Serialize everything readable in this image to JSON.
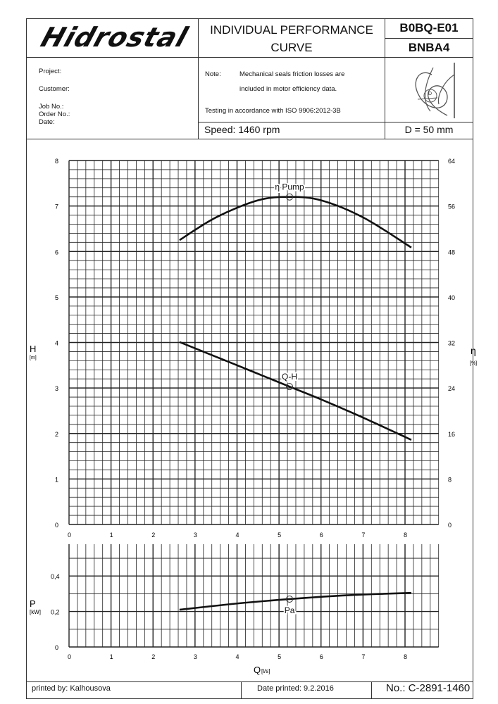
{
  "header": {
    "logo": "Hidrostal",
    "title_line1": "INDIVIDUAL PERFORMANCE",
    "title_line2": "CURVE",
    "code1": "B0BQ-E01",
    "code2": "BNBA4"
  },
  "info": {
    "project": "Project:",
    "customer": "Customer:",
    "job_no": "Job No.:",
    "order_no": "Order No.:",
    "date": "Date:",
    "note_label": "Note:",
    "note_line1": "Mechanical seals friction losses are",
    "note_line2": "included in motor efficiency data.",
    "testing": "Testing in accordance with ISO 9906:2012-3B",
    "speed": "Speed: 1460 rpm",
    "diameter": "D = 50 mm",
    "impeller_label": "D"
  },
  "footer": {
    "printed_by": "printed by: Kalhousova",
    "date_printed": "Date printed: 9.2.2016",
    "number": "No.: C-2891-1460"
  },
  "chart_data": [
    {
      "type": "line",
      "xlabel": "Q",
      "xunit": "[l/s]",
      "ylabel": "H",
      "yunit": "[m]",
      "y2label": "η",
      "y2unit": "[%]",
      "xlim": [
        0,
        8.8
      ],
      "ylim": [
        0,
        8
      ],
      "y2lim": [
        0,
        64
      ],
      "xticks": [
        "0",
        "1",
        "2",
        "3",
        "4",
        "5",
        "6",
        "7",
        "8"
      ],
      "yticks": [
        "0",
        "1",
        "2",
        "3",
        "4",
        "5",
        "6",
        "7",
        "8"
      ],
      "y2ticks": [
        "0",
        "8",
        "16",
        "24",
        "32",
        "40",
        "48",
        "56",
        "64"
      ],
      "grid": true,
      "series": [
        {
          "name": "η Pump",
          "axis": "right",
          "x": [
            2.63,
            3.5,
            4.5,
            5.25,
            6.0,
            7.0,
            8.15
          ],
          "y": [
            50,
            54,
            57,
            57.6,
            57,
            54,
            48.7
          ],
          "marker_x": 5.25
        },
        {
          "name": "Q-H",
          "axis": "left",
          "x": [
            2.63,
            4.0,
            5.25,
            6.0,
            7.0,
            8.15
          ],
          "y": [
            4.01,
            3.5,
            3.03,
            2.75,
            2.35,
            1.86
          ],
          "marker_x": 5.25
        }
      ]
    },
    {
      "type": "line",
      "xlabel": "Q",
      "xunit": "[l/s]",
      "ylabel": "P",
      "yunit": "[kW]",
      "xlim": [
        0,
        8.8
      ],
      "ylim": [
        0,
        0.58
      ],
      "xticks": [
        "0",
        "1",
        "2",
        "3",
        "4",
        "5",
        "6",
        "7",
        "8"
      ],
      "yticks": [
        "0",
        "0,2",
        "0,4"
      ],
      "grid": true,
      "series": [
        {
          "name": "Pa",
          "x": [
            2.63,
            4.0,
            5.25,
            6.5,
            7.5,
            8.15
          ],
          "y": [
            0.21,
            0.245,
            0.27,
            0.29,
            0.3,
            0.305
          ],
          "marker_x": 5.25
        }
      ]
    }
  ]
}
